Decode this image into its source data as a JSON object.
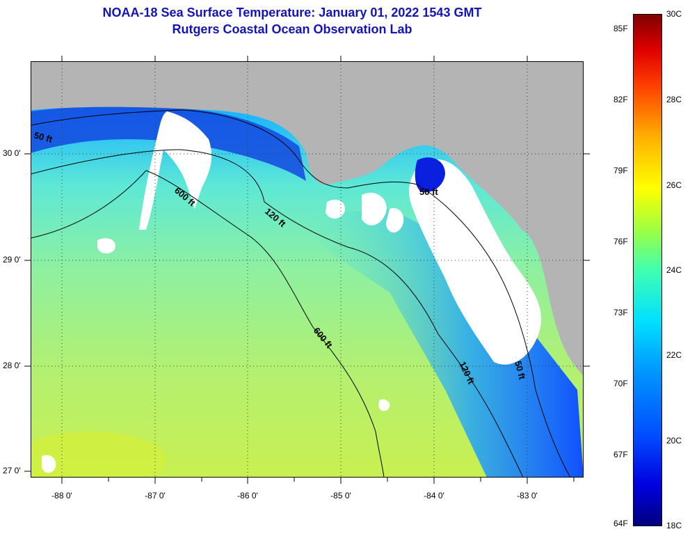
{
  "title": {
    "line1": "NOAA-18 Sea Surface Temperature:  January 01, 2022 1543 GMT",
    "line2": "Rutgers Coastal Ocean Observation Lab"
  },
  "map": {
    "lat_labels": [
      "30 0'",
      "29 0'",
      "28 0'",
      "27 0'"
    ],
    "lon_labels": [
      "-88 0'",
      "-87 0'",
      "-86 0'",
      "-85 0'",
      "-84 0'",
      "-83 0'"
    ],
    "contour_labels": [
      "50 ft",
      "600 ft",
      "120 ft",
      "50 ft",
      "600 ft",
      "120 ft",
      "50 ft"
    ],
    "land_color": "#b4b4b4",
    "cloud_color": "#ffffff"
  },
  "colorbar": {
    "fahrenheit_labels": [
      "85F",
      "82F",
      "79F",
      "76F",
      "73F",
      "70F",
      "67F",
      "64F"
    ],
    "celsius_labels": [
      "30C",
      "28C",
      "26C",
      "24C",
      "22C",
      "20C",
      "18C"
    ]
  }
}
